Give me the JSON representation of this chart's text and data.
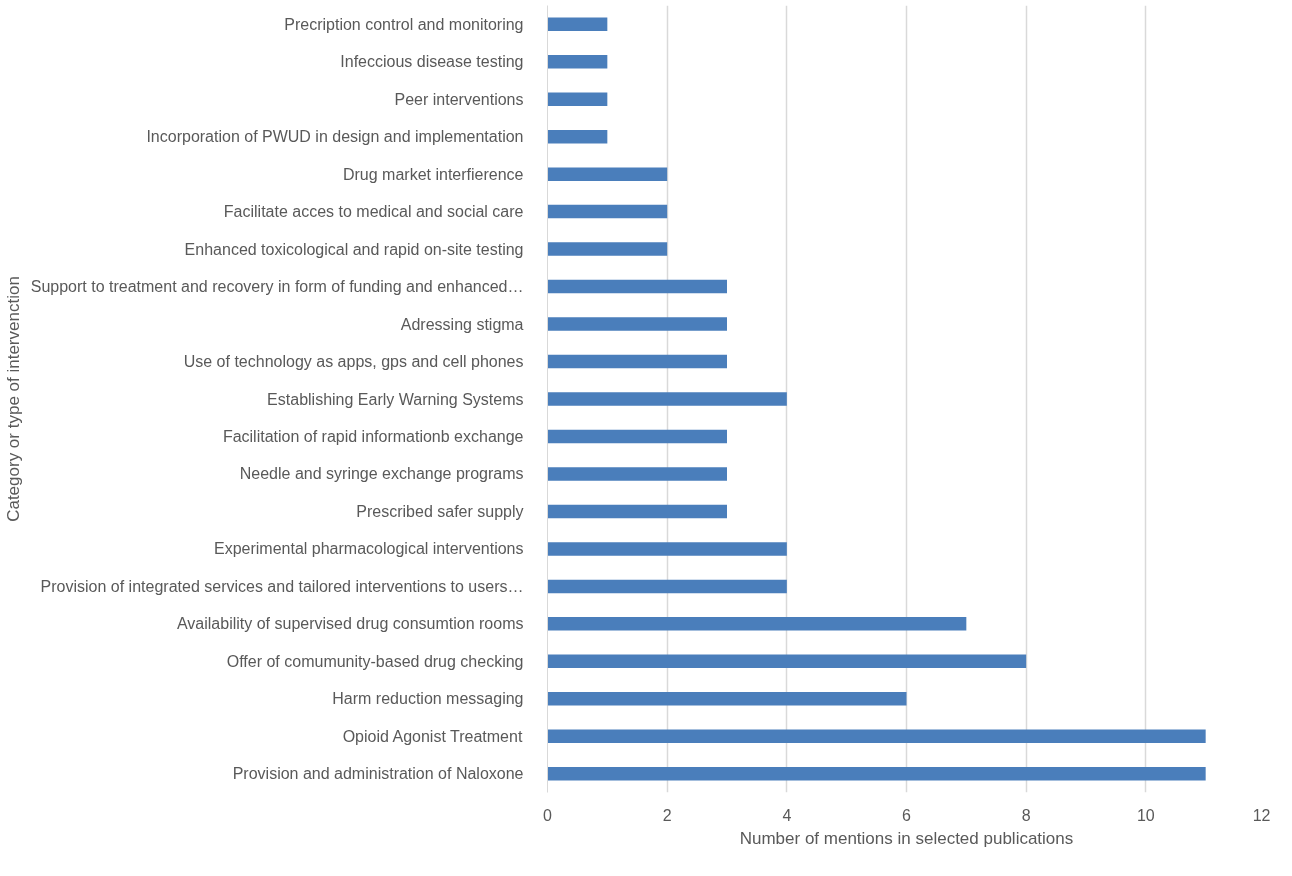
{
  "chart_data": {
    "type": "bar",
    "orientation": "horizontal",
    "xlabel": "Number of mentions in selected publications",
    "ylabel": "Category or type of intervenction",
    "categories": [
      "Precription control and monitoring",
      "Infeccious disease testing",
      "Peer interventions",
      "Incorporation of PWUD in design and implementation",
      "Drug market interfierence",
      "Facilitate acces to medical and social care",
      "Enhanced toxicological and rapid on-site testing",
      "Support to treatment and recovery in form of funding and enhanced…",
      "Adressing stigma",
      "Use of technology as apps, gps and cell phones",
      "Establishing Early Warning Systems",
      "Facilitation of rapid informationb exchange",
      "Needle and syringe exchange programs",
      "Prescribed safer supply",
      "Experimental pharmacological interventions",
      "Provision of integrated services and tailored interventions to users…",
      "Availability of supervised drug consumtion rooms",
      "Offer of comumunity-based drug checking",
      "Harm reduction messaging",
      "Opioid Agonist Treatment",
      "Provision and administration of Naloxone"
    ],
    "values": [
      1,
      1,
      1,
      1,
      2,
      2,
      2,
      3,
      3,
      3,
      4,
      3,
      3,
      3,
      4,
      4,
      7,
      8,
      6,
      11,
      11
    ],
    "color": "#4a7ebb",
    "xlim": [
      0,
      12
    ],
    "xticks": [
      0,
      2,
      4,
      6,
      8,
      10,
      12
    ],
    "grid": "x"
  }
}
